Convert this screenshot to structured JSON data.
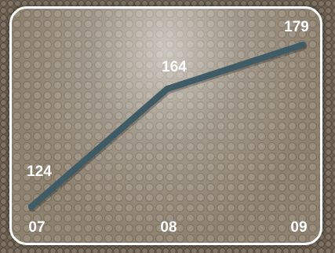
{
  "chart_data": {
    "type": "line",
    "categories": [
      "07",
      "08",
      "09"
    ],
    "series": [
      {
        "values": [
          124,
          164,
          179
        ]
      }
    ],
    "data_labels": [
      "124",
      "164",
      "179"
    ],
    "ylim": [
      120,
      185
    ],
    "grid": false,
    "legend": "none",
    "colors": {
      "line": "#3f5b66",
      "text": "#ffffff",
      "frame_border": "#ffffff"
    }
  }
}
